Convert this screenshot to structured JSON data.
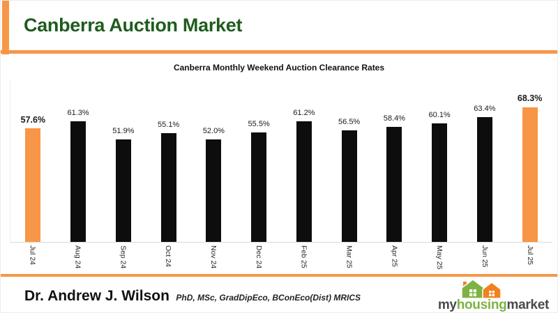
{
  "header": {
    "title": "Canberra Auction Market"
  },
  "chart_data": {
    "type": "bar",
    "title": "Canberra Monthly Weekend Auction Clearance Rates",
    "categories": [
      "Jul 24",
      "Aug 24",
      "Sep 24",
      "Oct 24",
      "Nov 24",
      "Dec 24",
      "Feb 25",
      "Mar 25",
      "Apr 25",
      "May 25",
      "Jun 25",
      "Jul 25"
    ],
    "values": [
      57.6,
      61.3,
      51.9,
      55.1,
      52.0,
      55.5,
      61.2,
      56.5,
      58.4,
      60.1,
      63.4,
      68.3
    ],
    "labels": [
      "57.6%",
      "61.3%",
      "51.9%",
      "55.1%",
      "52.0%",
      "55.5%",
      "61.2%",
      "56.5%",
      "58.4%",
      "60.1%",
      "63.4%",
      "68.3%"
    ],
    "highlighted_indices": [
      0,
      11
    ],
    "bar_color": "#0d0d0d",
    "highlight_color": "#f79646",
    "xlabel": "",
    "ylabel": "",
    "ylim": [
      0,
      80
    ],
    "grid": false,
    "legend": "none",
    "x_label_rotation": "vertical"
  },
  "footer": {
    "author": "Dr. Andrew J. Wilson",
    "credentials": "PhD, MSc, GradDipEco, BConEco(Dist) MRICS",
    "logo": {
      "part1": "my",
      "part2": "housing",
      "part3": "market"
    }
  },
  "colors": {
    "accent_orange": "#f79646",
    "title_green": "#1e5c1e",
    "axis_line": "#d9d9d9",
    "logo_green": "#7cb342",
    "logo_orange": "#f08220",
    "logo_dark": "#4a4a4c"
  }
}
